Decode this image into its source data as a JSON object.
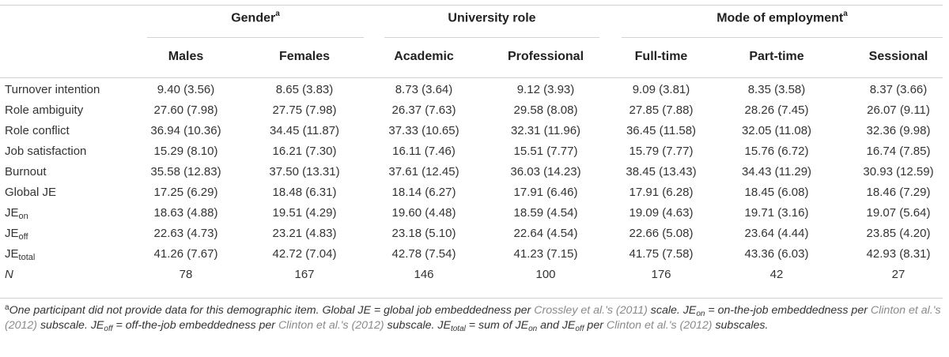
{
  "groups": [
    {
      "label": "Gender",
      "sup": "a"
    },
    {
      "label": "University role",
      "sup": ""
    },
    {
      "label": "Mode of employment",
      "sup": "a"
    }
  ],
  "columns": [
    "Males",
    "Females",
    "Academic",
    "Professional",
    "Full-time",
    "Part-time",
    "Sessional"
  ],
  "rows": [
    {
      "label": "Turnover intention",
      "sub": "",
      "italic": false,
      "values": [
        "9.40 (3.56)",
        "8.65 (3.83)",
        "8.73 (3.64)",
        "9.12 (3.93)",
        "9.09 (3.81)",
        "8.35 (3.58)",
        "8.37 (3.66)"
      ]
    },
    {
      "label": "Role ambiguity",
      "sub": "",
      "italic": false,
      "values": [
        "27.60 (7.98)",
        "27.75 (7.98)",
        "26.37 (7.63)",
        "29.58 (8.08)",
        "27.85 (7.88)",
        "28.26 (7.45)",
        "26.07 (9.11)"
      ]
    },
    {
      "label": "Role conflict",
      "sub": "",
      "italic": false,
      "values": [
        "36.94 (10.36)",
        "34.45 (11.87)",
        "37.33 (10.65)",
        "32.31 (11.96)",
        "36.45 (11.58)",
        "32.05 (11.08)",
        "32.36 (9.98)"
      ]
    },
    {
      "label": "Job satisfaction",
      "sub": "",
      "italic": false,
      "values": [
        "15.29 (8.10)",
        "16.21 (7.30)",
        "16.11 (7.46)",
        "15.51 (7.77)",
        "15.79 (7.77)",
        "15.76 (6.72)",
        "16.74 (7.85)"
      ]
    },
    {
      "label": "Burnout",
      "sub": "",
      "italic": false,
      "values": [
        "35.58 (12.83)",
        "37.50 (13.31)",
        "37.61 (12.45)",
        "36.03 (14.23)",
        "38.45 (13.43)",
        "34.43 (11.29)",
        "30.93 (12.59)"
      ]
    },
    {
      "label": "Global JE",
      "sub": "",
      "italic": false,
      "values": [
        "17.25 (6.29)",
        "18.48 (6.31)",
        "18.14 (6.27)",
        "17.91 (6.46)",
        "17.91 (6.28)",
        "18.45 (6.08)",
        "18.46 (7.29)"
      ]
    },
    {
      "label": "JE",
      "sub": "on",
      "italic": false,
      "values": [
        "18.63 (4.88)",
        "19.51 (4.29)",
        "19.60 (4.48)",
        "18.59 (4.54)",
        "19.09 (4.63)",
        "19.71 (3.16)",
        "19.07 (5.64)"
      ]
    },
    {
      "label": "JE",
      "sub": "off",
      "italic": false,
      "values": [
        "22.63 (4.73)",
        "23.21 (4.83)",
        "23.18 (5.10)",
        "22.64 (4.54)",
        "22.66 (5.08)",
        "23.64 (4.44)",
        "23.85 (4.20)"
      ]
    },
    {
      "label": "JE",
      "sub": "total",
      "italic": false,
      "values": [
        "41.26 (7.67)",
        "42.72 (7.04)",
        "42.78 (7.54)",
        "41.23 (7.15)",
        "41.75 (7.58)",
        "43.36 (6.03)",
        "42.93 (8.31)"
      ]
    },
    {
      "label": "N",
      "sub": "",
      "italic": true,
      "values": [
        "78",
        "167",
        "146",
        "100",
        "176",
        "42",
        "27"
      ]
    }
  ],
  "footnote": {
    "mark": "a",
    "segments": [
      {
        "t": "One participant did not provide data for this demographic item. Global JE = global job embeddedness per ",
        "ref": false,
        "sub": false
      },
      {
        "t": "Crossley et al.'s (2011)",
        "ref": true,
        "sub": false
      },
      {
        "t": " scale. JE",
        "ref": false,
        "sub": false
      },
      {
        "t": "on",
        "ref": false,
        "sub": true
      },
      {
        "t": " = on-the-job embeddedness per ",
        "ref": false,
        "sub": false
      },
      {
        "t": "Clinton et al.'s (2012)",
        "ref": true,
        "sub": false
      },
      {
        "t": " subscale. JE",
        "ref": false,
        "sub": false
      },
      {
        "t": "off",
        "ref": false,
        "sub": true
      },
      {
        "t": " = off-the-job embeddedness per ",
        "ref": false,
        "sub": false
      },
      {
        "t": "Clinton et al.'s (2012)",
        "ref": true,
        "sub": false
      },
      {
        "t": " subscale. JE",
        "ref": false,
        "sub": false
      },
      {
        "t": "total",
        "ref": false,
        "sub": true
      },
      {
        "t": " = sum of JE",
        "ref": false,
        "sub": false
      },
      {
        "t": "on",
        "ref": false,
        "sub": true
      },
      {
        "t": " and JE",
        "ref": false,
        "sub": false
      },
      {
        "t": "off",
        "ref": false,
        "sub": true
      },
      {
        "t": " per ",
        "ref": false,
        "sub": false
      },
      {
        "t": "Clinton et al.'s (2012)",
        "ref": true,
        "sub": false
      },
      {
        "t": " subscales.",
        "ref": false,
        "sub": false
      }
    ]
  }
}
